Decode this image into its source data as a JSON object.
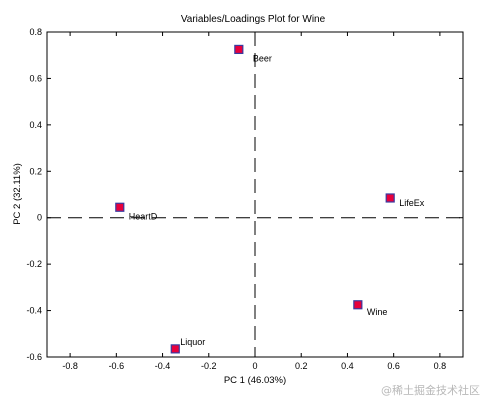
{
  "chart_data": {
    "type": "scatter",
    "title": "Variables/Loadings Plot for Wine",
    "xlabel": "PC 1 (46.03%)",
    "ylabel": "PC 2 (32.11%)",
    "xlim": [
      -0.9,
      0.9
    ],
    "ylim": [
      -0.6,
      0.8
    ],
    "xticks": [
      "-0.8",
      "-0.6",
      "-0.4",
      "-0.2",
      "0",
      "0.2",
      "0.4",
      "0.6",
      "0.8"
    ],
    "yticks": [
      "-0.6",
      "-0.4",
      "-0.2",
      "0",
      "0.2",
      "0.4",
      "0.6",
      "0.8"
    ],
    "xtick_values": [
      -0.8,
      -0.6,
      -0.4,
      -0.2,
      0,
      0.2,
      0.4,
      0.6,
      0.8
    ],
    "ytick_values": [
      -0.6,
      -0.4,
      -0.2,
      0,
      0.2,
      0.4,
      0.6,
      0.8
    ],
    "points": [
      {
        "label": "Beer",
        "x": -0.07,
        "y": 0.725
      },
      {
        "label": "LifeEx",
        "x": 0.585,
        "y": 0.085
      },
      {
        "label": "HeartD",
        "x": -0.585,
        "y": 0.045
      },
      {
        "label": "Wine",
        "x": 0.445,
        "y": -0.375
      },
      {
        "label": "Liquor",
        "x": -0.345,
        "y": -0.565
      }
    ],
    "reference_lines": {
      "x": 0,
      "y": 0
    },
    "marker_fill": "#e8003c",
    "marker_edge": "#3a3aa0",
    "grid": false
  },
  "watermark": "@稀土掘金技术社区"
}
